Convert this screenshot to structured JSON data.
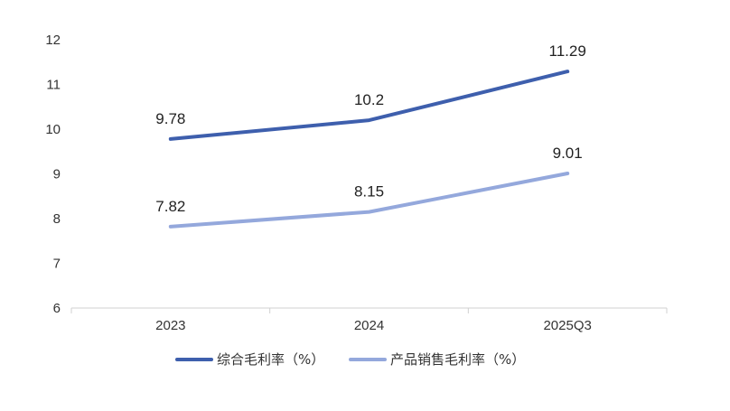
{
  "chart_data": {
    "type": "line",
    "categories": [
      "2023",
      "2024",
      "2025Q3"
    ],
    "series": [
      {
        "name": "综合毛利率（%）",
        "values": [
          9.78,
          10.2,
          11.29
        ],
        "color": "#3e5fad"
      },
      {
        "name": "产品销售毛利率（%）",
        "values": [
          7.82,
          8.15,
          9.01
        ],
        "color": "#94a8dc"
      }
    ],
    "ylim": [
      6,
      12
    ],
    "yticks": [
      "6",
      "7",
      "8",
      "9",
      "10",
      "11",
      "12"
    ],
    "grid": false,
    "legend_position": "bottom"
  }
}
